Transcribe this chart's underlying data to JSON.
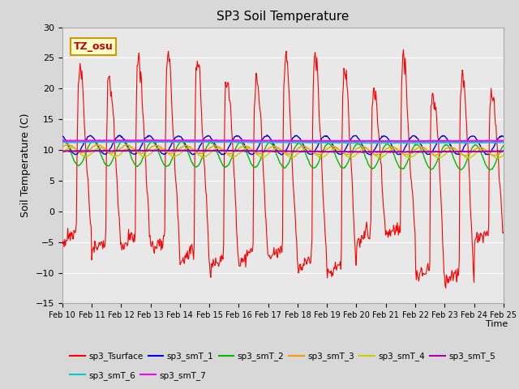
{
  "title": "SP3 Soil Temperature",
  "ylabel": "Soil Temperature (C)",
  "xlabel": "Time",
  "annotation": "TZ_osu",
  "ylim": [
    -15,
    30
  ],
  "background_color": "#d8d8d8",
  "plot_bg_color": "#e8e8e8",
  "x_tick_labels": [
    "Feb 10",
    "Feb 11",
    "Feb 12",
    "Feb 13",
    "Feb 14",
    "Feb 15",
    "Feb 16",
    "Feb 17",
    "Feb 18",
    "Feb 19",
    "Feb 20",
    "Feb 21",
    "Feb 22",
    "Feb 23",
    "Feb 24",
    "Feb 25"
  ],
  "series": {
    "sp3_Tsurface": {
      "color": "#ff0000",
      "lw": 0.8
    },
    "sp3_smT_1": {
      "color": "#0000dd",
      "lw": 1.0
    },
    "sp3_smT_2": {
      "color": "#00bb00",
      "lw": 1.0
    },
    "sp3_smT_3": {
      "color": "#ff9900",
      "lw": 1.0
    },
    "sp3_smT_4": {
      "color": "#cccc00",
      "lw": 1.0
    },
    "sp3_smT_5": {
      "color": "#aa00aa",
      "lw": 1.5
    },
    "sp3_smT_6": {
      "color": "#00cccc",
      "lw": 1.5
    },
    "sp3_smT_7": {
      "color": "#ff00ff",
      "lw": 1.5
    }
  },
  "legend_colors": {
    "sp3_Tsurface": "#ff0000",
    "sp3_smT_1": "#0000dd",
    "sp3_smT_2": "#00bb00",
    "sp3_smT_3": "#ff9900",
    "sp3_smT_4": "#cccc00",
    "sp3_smT_5": "#aa00aa",
    "sp3_smT_6": "#00cccc",
    "sp3_smT_7": "#ff00ff"
  }
}
